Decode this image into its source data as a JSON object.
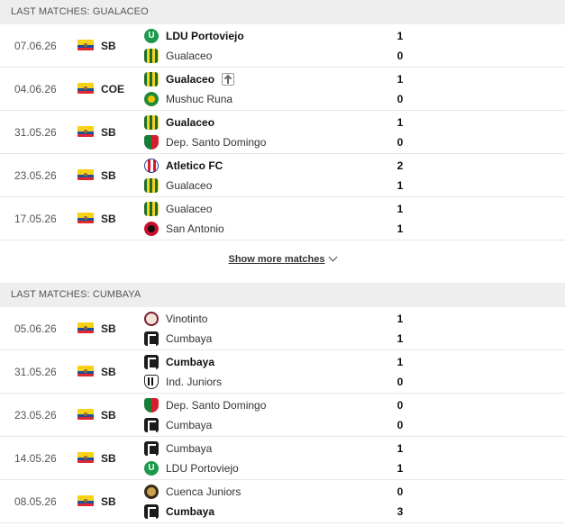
{
  "sections": [
    {
      "title": "LAST MATCHES: GUALACEO",
      "matches": [
        {
          "date": "07.06.26",
          "comp": "SB",
          "home": {
            "name": "LDU Portoviejo",
            "logo": "ldu",
            "bold": true
          },
          "away": {
            "name": "Gualaceo",
            "logo": "gua",
            "bold": false
          },
          "home_score": "1",
          "away_score": "0"
        },
        {
          "date": "04.06.26",
          "comp": "COE",
          "home": {
            "name": "Gualaceo",
            "logo": "gua",
            "bold": true,
            "advance_icon": true
          },
          "away": {
            "name": "Mushuc Runa",
            "logo": "mush",
            "bold": false
          },
          "home_score": "1",
          "away_score": "0"
        },
        {
          "date": "31.05.26",
          "comp": "SB",
          "home": {
            "name": "Gualaceo",
            "logo": "gua",
            "bold": true
          },
          "away": {
            "name": "Dep. Santo Domingo",
            "logo": "dsd",
            "bold": false
          },
          "home_score": "1",
          "away_score": "0"
        },
        {
          "date": "23.05.26",
          "comp": "SB",
          "home": {
            "name": "Atletico FC",
            "logo": "atl",
            "bold": true
          },
          "away": {
            "name": "Gualaceo",
            "logo": "gua",
            "bold": false
          },
          "home_score": "2",
          "away_score": "1"
        },
        {
          "date": "17.05.26",
          "comp": "SB",
          "home": {
            "name": "Gualaceo",
            "logo": "gua",
            "bold": false
          },
          "away": {
            "name": "San Antonio",
            "logo": "sant",
            "bold": false
          },
          "home_score": "1",
          "away_score": "1"
        }
      ]
    },
    {
      "title": "LAST MATCHES: CUMBAYA",
      "matches": [
        {
          "date": "05.06.26",
          "comp": "SB",
          "home": {
            "name": "Vinotinto",
            "logo": "vino",
            "bold": false
          },
          "away": {
            "name": "Cumbaya",
            "logo": "cumb",
            "bold": false
          },
          "home_score": "1",
          "away_score": "1"
        },
        {
          "date": "31.05.26",
          "comp": "SB",
          "home": {
            "name": "Cumbaya",
            "logo": "cumb",
            "bold": true
          },
          "away": {
            "name": "Ind. Juniors",
            "logo": "ind",
            "bold": false
          },
          "home_score": "1",
          "away_score": "0"
        },
        {
          "date": "23.05.26",
          "comp": "SB",
          "home": {
            "name": "Dep. Santo Domingo",
            "logo": "dsd",
            "bold": false
          },
          "away": {
            "name": "Cumbaya",
            "logo": "cumb",
            "bold": false
          },
          "home_score": "0",
          "away_score": "0"
        },
        {
          "date": "14.05.26",
          "comp": "SB",
          "home": {
            "name": "Cumbaya",
            "logo": "cumb",
            "bold": false
          },
          "away": {
            "name": "LDU Portoviejo",
            "logo": "ldu",
            "bold": false
          },
          "home_score": "1",
          "away_score": "1"
        },
        {
          "date": "08.05.26",
          "comp": "SB",
          "home": {
            "name": "Cuenca Juniors",
            "logo": "cj",
            "bold": false
          },
          "away": {
            "name": "Cumbaya",
            "logo": "cumb",
            "bold": true
          },
          "home_score": "0",
          "away_score": "3"
        }
      ]
    }
  ],
  "show_more_label": "Show more matches",
  "flag_icon": "ecuador-flag-icon"
}
